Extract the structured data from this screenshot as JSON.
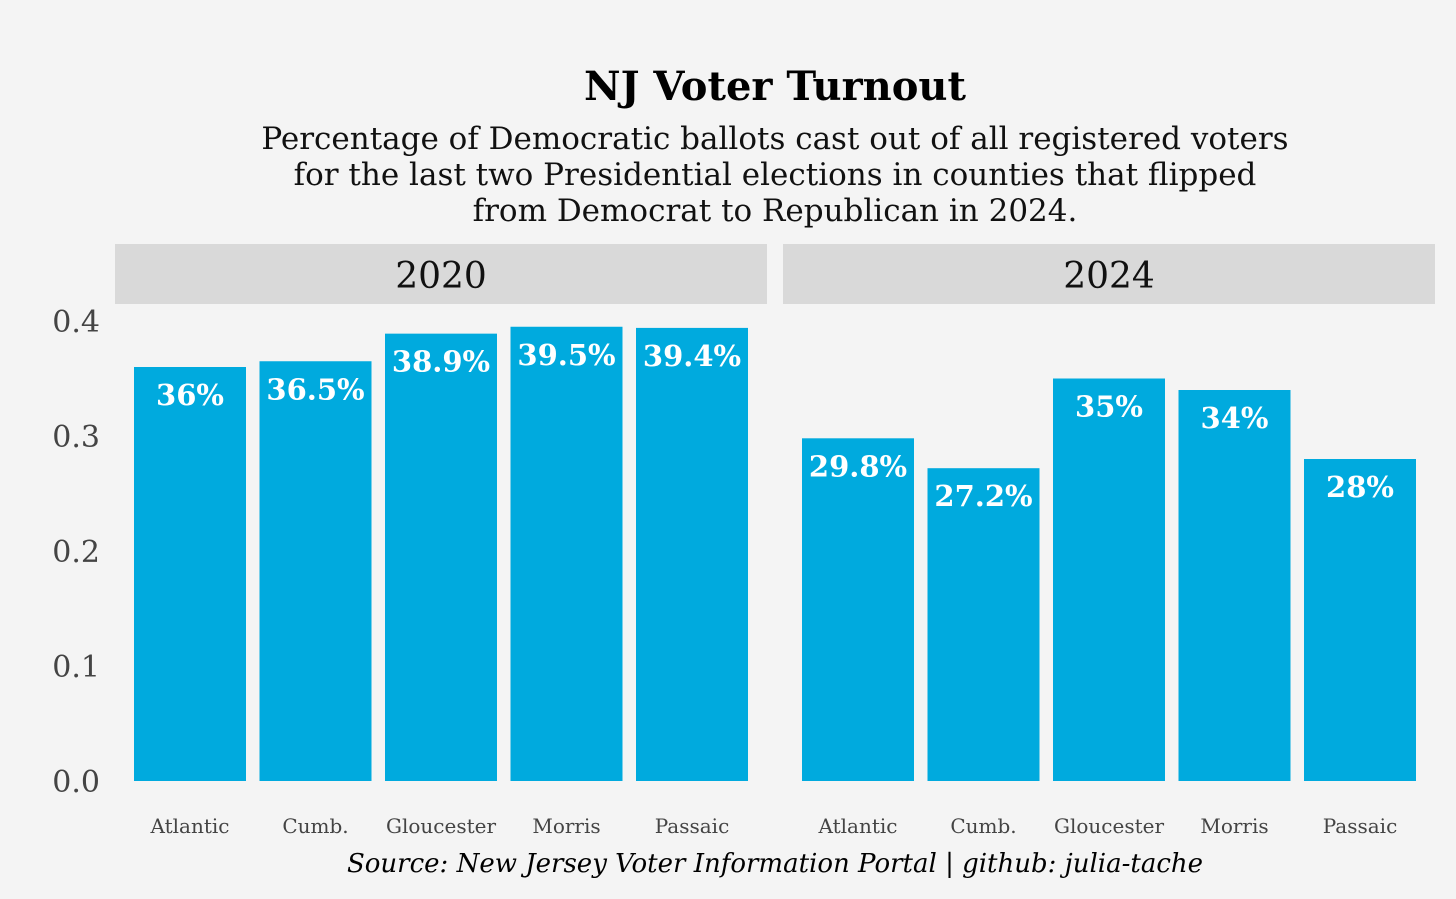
{
  "chart_data": {
    "type": "bar",
    "title": "NJ Voter Turnout",
    "subtitle": [
      "Percentage of Democratic ballots cast out of all registered voters",
      "for the last two Presidential elections in counties that flipped",
      "from Democrat to Republican in 2024."
    ],
    "caption": "Source: New Jersey Voter Information Portal | github: julia-tache",
    "ylim": [
      0,
      0.4
    ],
    "yticks": [
      "0.0",
      "0.1",
      "0.2",
      "0.3",
      "0.4"
    ],
    "yticks_values": [
      0,
      0.1,
      0.2,
      0.3,
      0.4
    ],
    "bar_color": "#00aade",
    "strip_color": "#d9d9d9",
    "background": "#f4f4f4",
    "panels": [
      {
        "facet": "2020",
        "categories": [
          "Atlantic",
          "Cumb.",
          "Gloucester",
          "Morris",
          "Passaic"
        ],
        "values": [
          0.36,
          0.365,
          0.389,
          0.395,
          0.394
        ],
        "labels": [
          "36%",
          "36.5%",
          "38.9%",
          "39.5%",
          "39.4%"
        ]
      },
      {
        "facet": "2024",
        "categories": [
          "Atlantic",
          "Cumb.",
          "Gloucester",
          "Morris",
          "Passaic"
        ],
        "values": [
          0.298,
          0.272,
          0.35,
          0.34,
          0.28
        ],
        "labels": [
          "29.8%",
          "27.2%",
          "35%",
          "34%",
          "28%"
        ]
      }
    ]
  }
}
